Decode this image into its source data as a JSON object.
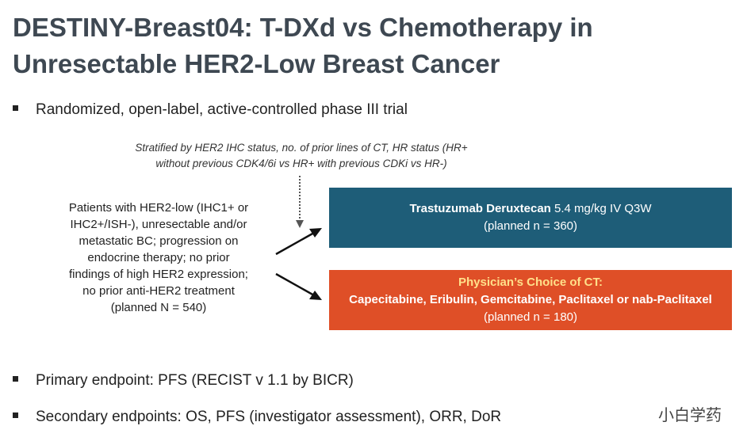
{
  "header": {
    "title_lines": [
      "DESTINY-Breast04: T-DXd vs Chemotherapy in",
      "Unresectable HER2-Low Breast Cancer"
    ]
  },
  "bullets_top": [
    "Randomized, open-label, active-controlled phase III trial"
  ],
  "stratification": {
    "lines": [
      "Stratified by HER2 IHC status, no. of prior lines of CT, HR status (HR+",
      "without previous CDK4/6i vs HR+ with previous CDKi vs HR-)"
    ]
  },
  "patients": {
    "lines": [
      "Patients with HER2-low (IHC1+ or",
      "IHC2+/ISH-), unresectable and/or",
      "metastatic BC; progression on",
      "endocrine therapy; no prior",
      "findings of high HER2 expression;",
      "no prior anti-HER2 treatment",
      "(planned N = 540)"
    ]
  },
  "arms": [
    {
      "name": "Trastuzumab Deruxtecan",
      "dose": "5.4 mg/kg IV Q3W",
      "planned": "(planned n = 360)"
    },
    {
      "name": "Physician’s Choice of CT:",
      "dose": "Capecitabine, Eribulin, Gemcitabine, Paclitaxel or nab-Paclitaxel",
      "planned": "(planned n = 180)"
    }
  ],
  "bullets_bottom": [
    "Primary endpoint: PFS (RECIST v 1.1 by BICR)",
    "Secondary endpoints: OS, PFS (investigator assessment), ORR, DoR"
  ],
  "watermark": "小白学药"
}
